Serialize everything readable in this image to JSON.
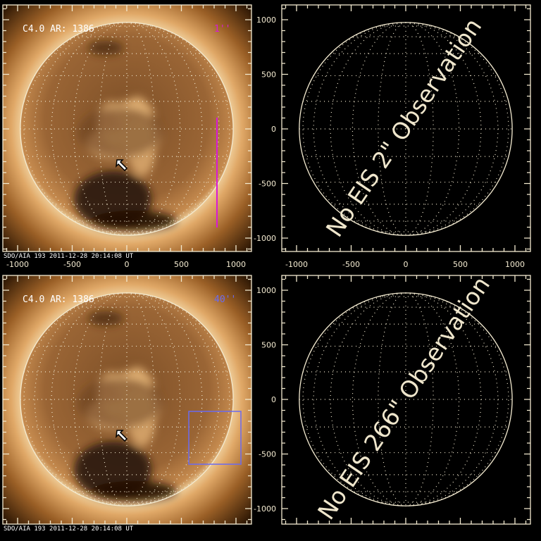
{
  "panels": [
    {
      "id": "top-left",
      "type": "aia-image",
      "label": "C4.0 AR: 1386",
      "slit_label": "1''",
      "slit_color": "#d81ad8",
      "footer": "SDO/AIA 193   2011-12-28 20:14:08 UT",
      "x_ticks": [
        "-1000",
        "-500",
        "0",
        "500",
        "1000"
      ]
    },
    {
      "id": "top-right",
      "type": "eis-empty",
      "message": "No EIS 2\" Observation",
      "x_ticks": [
        "-1000",
        "-500",
        "0",
        "500",
        "1000"
      ],
      "y_ticks": [
        "1000",
        "500",
        "0",
        "-500",
        "-1000"
      ]
    },
    {
      "id": "bottom-left",
      "type": "aia-image",
      "label": "C4.0 AR: 1386",
      "slit_label": "40''",
      "slit_color": "#6a6af0",
      "footer": "SDO/AIA 193   2011-12-28 20:14:08 UT"
    },
    {
      "id": "bottom-right",
      "type": "eis-empty",
      "message": "No EIS 266\" Observation",
      "y_ticks": [
        "1000",
        "500",
        "0",
        "-500",
        "-1000"
      ]
    }
  ],
  "colors": {
    "axis": "#f3ead0",
    "corona": "#c98a45",
    "disk": "#8a5a2e"
  }
}
